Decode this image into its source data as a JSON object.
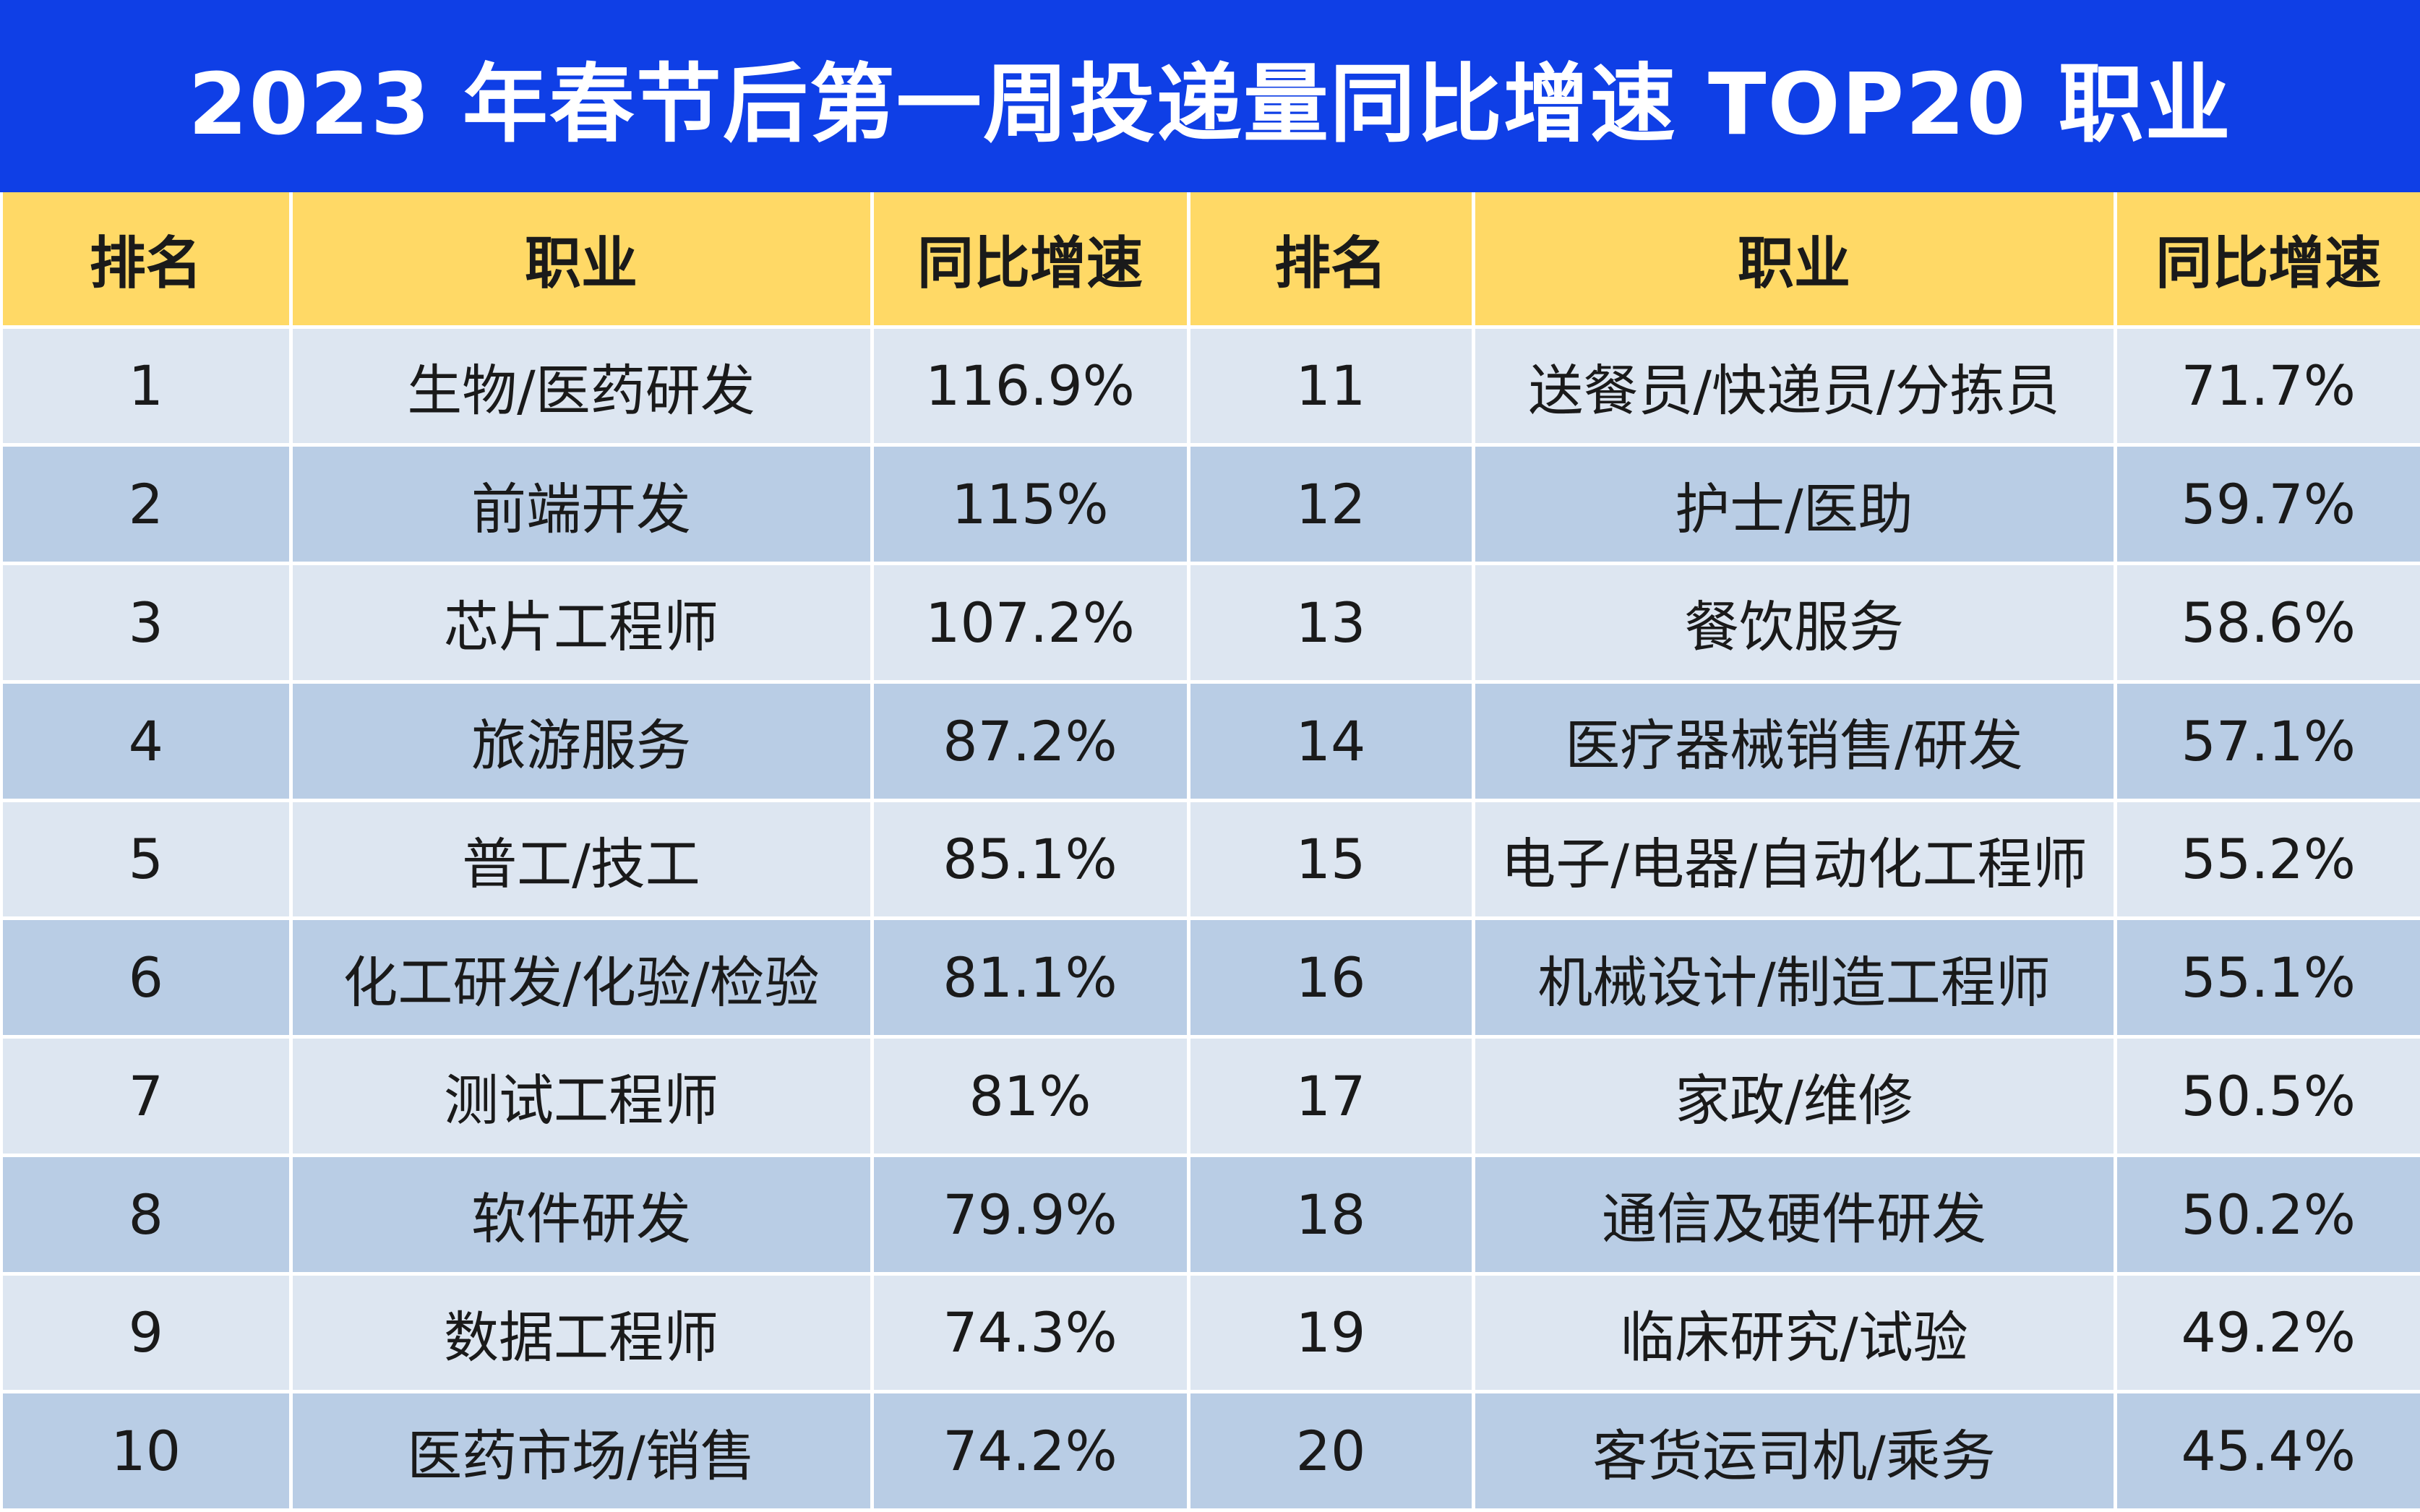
{
  "chart_data": {
    "type": "table",
    "title": "2023 年春节后第一周投递量同比增速 TOP20 职业",
    "columns": [
      "排名",
      "职业",
      "同比增速",
      "排名",
      "职业",
      "同比增速"
    ],
    "rows": [
      [
        "1",
        "生物/医药研发",
        "116.9%",
        "11",
        "送餐员/快递员/分拣员",
        "71.7%"
      ],
      [
        "2",
        "前端开发",
        "115%",
        "12",
        "护士/医助",
        "59.7%"
      ],
      [
        "3",
        "芯片工程师",
        "107.2%",
        "13",
        "餐饮服务",
        "58.6%"
      ],
      [
        "4",
        "旅游服务",
        "87.2%",
        "14",
        "医疗器械销售/研发",
        "57.1%"
      ],
      [
        "5",
        "普工/技工",
        "85.1%",
        "15",
        "电子/电器/自动化工程师",
        "55.2%"
      ],
      [
        "6",
        "化工研发/化验/检验",
        "81.1%",
        "16",
        "机械设计/制造工程师",
        "55.1%"
      ],
      [
        "7",
        "测试工程师",
        "81%",
        "17",
        "家政/维修",
        "50.5%"
      ],
      [
        "8",
        "软件研发",
        "79.9%",
        "18",
        "通信及硬件研发",
        "50.2%"
      ],
      [
        "9",
        "数据工程师",
        "74.3%",
        "19",
        "临床研究/试验",
        "49.2%"
      ],
      [
        "10",
        "医药市场/销售",
        "74.2%",
        "20",
        "客货运司机/乘务",
        "45.4%"
      ]
    ],
    "colors": {
      "title_background": "#0f3fe6",
      "header_background": "#ffd966",
      "row_light": "#dde6f1",
      "row_dark": "#b9cde5"
    }
  }
}
